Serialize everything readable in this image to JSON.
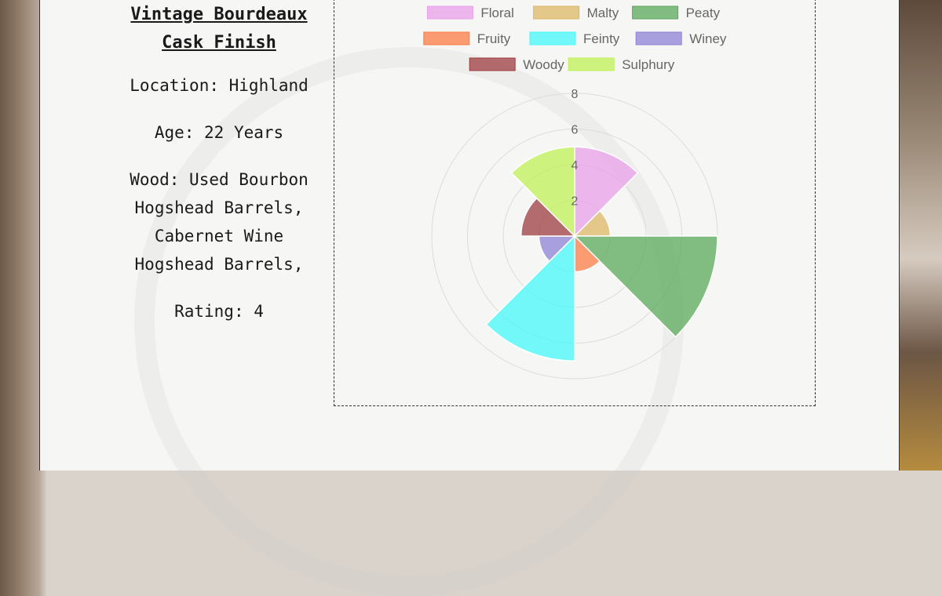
{
  "whisky": {
    "name": "Vintage Bourdeaux Cask Finish",
    "location": "Location: Highland",
    "age": "Age: 22 Years",
    "wood": "Wood: Used Bourbon Hogshead Barrels, Cabernet Wine Hogshead Barrels,",
    "rating": "Rating: 4"
  },
  "chart_data": {
    "type": "polarArea",
    "categories": [
      "Floral",
      "Malty",
      "Peaty",
      "Fruity",
      "Feinty",
      "Winey",
      "Woody",
      "Sulphury"
    ],
    "values": [
      5,
      2,
      8,
      2,
      7,
      2,
      3,
      5
    ],
    "colors": [
      "#e8a0ea",
      "#ddb864",
      "#5aa85a",
      "#fb7c44",
      "#45f8fa",
      "#8c82d6",
      "#9e3c40",
      "#bff256"
    ],
    "rlim": [
      0,
      8
    ],
    "ticks": [
      "2",
      "4",
      "6",
      "8"
    ],
    "grid": true,
    "legend_position": "top"
  }
}
